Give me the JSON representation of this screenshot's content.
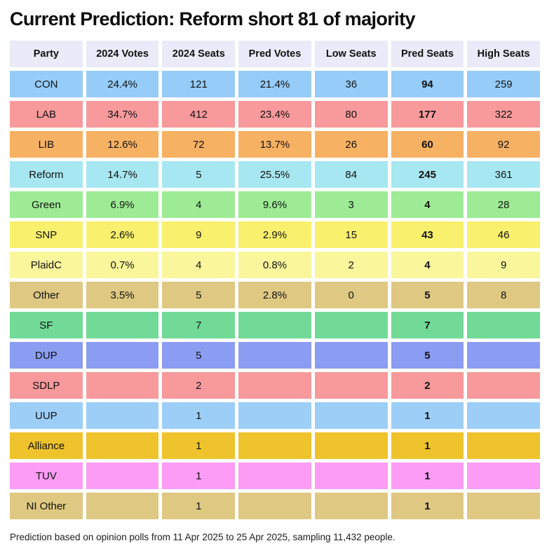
{
  "title": "Current Prediction: Reform short 81 of majority",
  "footer": "Prediction based on opinion polls from 11 Apr 2025 to 25 Apr 2025, sampling 11,432 people.",
  "colors": {
    "header_bg": "#EAEAF8",
    "page_bg": "#FFFFFF",
    "text": "#111111"
  },
  "chart_data": {
    "type": "table",
    "title": "Current Prediction: Reform short 81 of majority",
    "columns": [
      "Party",
      "2024 Votes",
      "2024 Seats",
      "Pred Votes",
      "Low Seats",
      "Pred Seats",
      "High Seats"
    ],
    "rows": [
      {
        "party": "CON",
        "color": "#96CCF8",
        "votes2024": "24.4%",
        "seats2024": "121",
        "pred_votes": "21.4%",
        "low_seats": "36",
        "pred_seats": "94",
        "high_seats": "259"
      },
      {
        "party": "LAB",
        "color": "#F8999B",
        "votes2024": "34.7%",
        "seats2024": "412",
        "pred_votes": "23.4%",
        "low_seats": "80",
        "pred_seats": "177",
        "high_seats": "322"
      },
      {
        "party": "LIB",
        "color": "#F7B163",
        "votes2024": "12.6%",
        "seats2024": "72",
        "pred_votes": "13.7%",
        "low_seats": "26",
        "pred_seats": "60",
        "high_seats": "92"
      },
      {
        "party": "Reform",
        "color": "#A7E7F1",
        "votes2024": "14.7%",
        "seats2024": "5",
        "pred_votes": "25.5%",
        "low_seats": "84",
        "pred_seats": "245",
        "high_seats": "361"
      },
      {
        "party": "Green",
        "color": "#9DEC95",
        "votes2024": "6.9%",
        "seats2024": "4",
        "pred_votes": "9.6%",
        "low_seats": "3",
        "pred_seats": "4",
        "high_seats": "28"
      },
      {
        "party": "SNP",
        "color": "#F9F06E",
        "votes2024": "2.6%",
        "seats2024": "9",
        "pred_votes": "2.9%",
        "low_seats": "15",
        "pred_seats": "43",
        "high_seats": "46"
      },
      {
        "party": "PlaidC",
        "color": "#FAF69C",
        "votes2024": "0.7%",
        "seats2024": "4",
        "pred_votes": "0.8%",
        "low_seats": "2",
        "pred_seats": "4",
        "high_seats": "9"
      },
      {
        "party": "Other",
        "color": "#DFC882",
        "votes2024": "3.5%",
        "seats2024": "5",
        "pred_votes": "2.8%",
        "low_seats": "0",
        "pred_seats": "5",
        "high_seats": "8"
      },
      {
        "party": "SF",
        "color": "#71DA96",
        "votes2024": "",
        "seats2024": "7",
        "pred_votes": "",
        "low_seats": "",
        "pred_seats": "7",
        "high_seats": ""
      },
      {
        "party": "DUP",
        "color": "#8B9CF3",
        "votes2024": "",
        "seats2024": "5",
        "pred_votes": "",
        "low_seats": "",
        "pred_seats": "5",
        "high_seats": ""
      },
      {
        "party": "SDLP",
        "color": "#F8999B",
        "votes2024": "",
        "seats2024": "2",
        "pred_votes": "",
        "low_seats": "",
        "pred_seats": "2",
        "high_seats": ""
      },
      {
        "party": "UUP",
        "color": "#9CCEF8",
        "votes2024": "",
        "seats2024": "1",
        "pred_votes": "",
        "low_seats": "",
        "pred_seats": "1",
        "high_seats": ""
      },
      {
        "party": "Alliance",
        "color": "#EFC32B",
        "votes2024": "",
        "seats2024": "1",
        "pred_votes": "",
        "low_seats": "",
        "pred_seats": "1",
        "high_seats": ""
      },
      {
        "party": "TUV",
        "color": "#FC9CF5",
        "votes2024": "",
        "seats2024": "1",
        "pred_votes": "",
        "low_seats": "",
        "pred_seats": "1",
        "high_seats": ""
      },
      {
        "party": "NI Other",
        "color": "#DFC882",
        "votes2024": "",
        "seats2024": "1",
        "pred_votes": "",
        "low_seats": "",
        "pred_seats": "1",
        "high_seats": ""
      }
    ]
  }
}
